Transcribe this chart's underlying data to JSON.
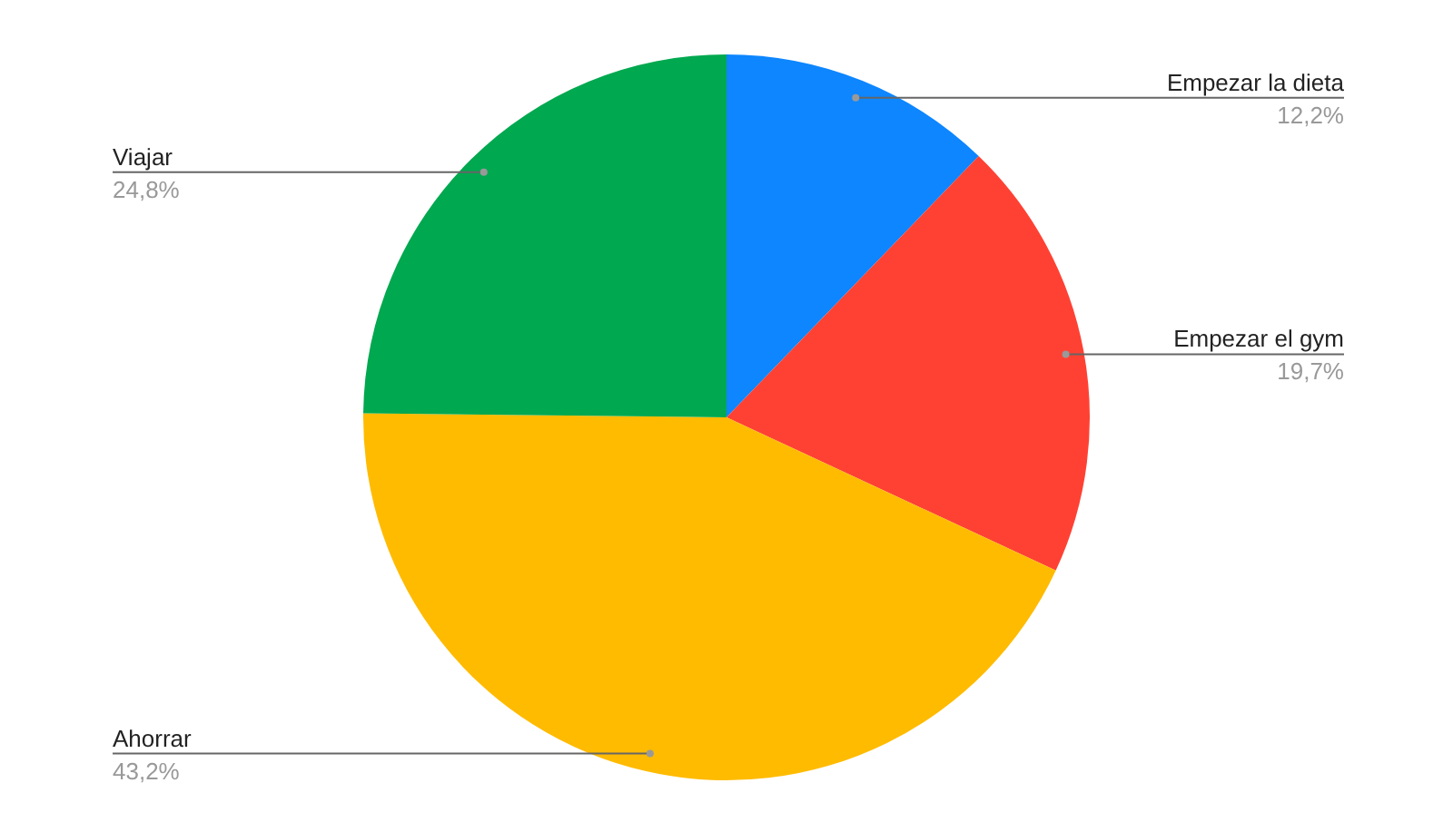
{
  "chart_data": {
    "type": "pie",
    "categories": [
      "Empezar la dieta",
      "Empezar el gym",
      "Ahorrar",
      "Viajar"
    ],
    "values": [
      12.2,
      19.7,
      43.2,
      24.8
    ],
    "colors": [
      "#0d86ff",
      "#ff4133",
      "#ffbb00",
      "#00a84f"
    ],
    "value_labels": [
      "12,2%",
      "19,7%",
      "43,2%",
      "24,8%"
    ],
    "legend": false
  }
}
